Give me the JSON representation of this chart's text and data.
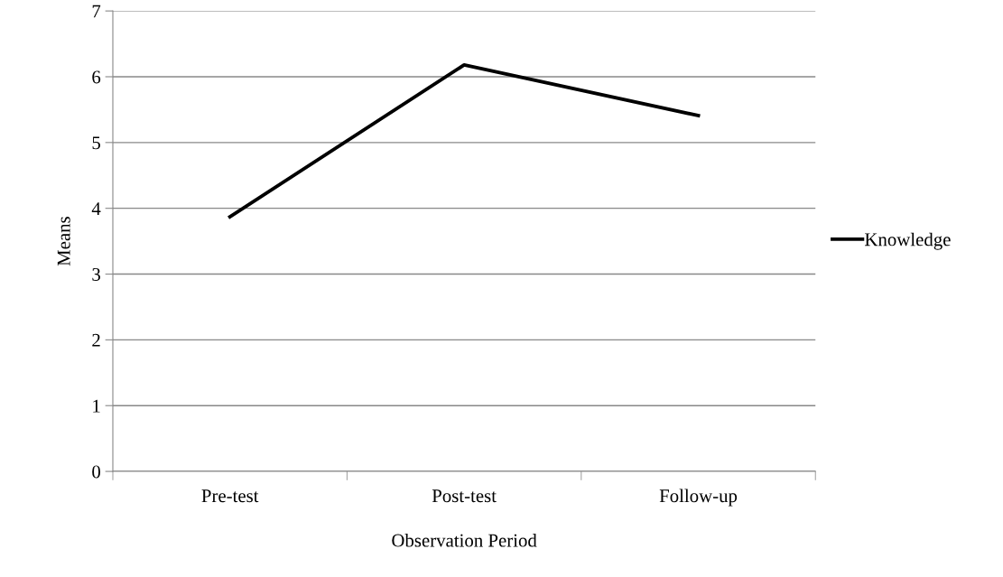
{
  "chart_data": {
    "type": "line",
    "xlabel": "Observation Period",
    "ylabel": "Means",
    "categories": [
      "Pre-test",
      "Post-test",
      "Follow-up"
    ],
    "series": [
      {
        "name": "Knowledge",
        "color": "#000000",
        "values": [
          3.87,
          6.18,
          5.41
        ]
      }
    ],
    "ylim": [
      0,
      7
    ],
    "yticks": [
      0,
      1,
      2,
      3,
      4,
      5,
      6,
      7
    ],
    "grid": "y",
    "legend": "right",
    "marker": "none",
    "line_style": "solid"
  }
}
